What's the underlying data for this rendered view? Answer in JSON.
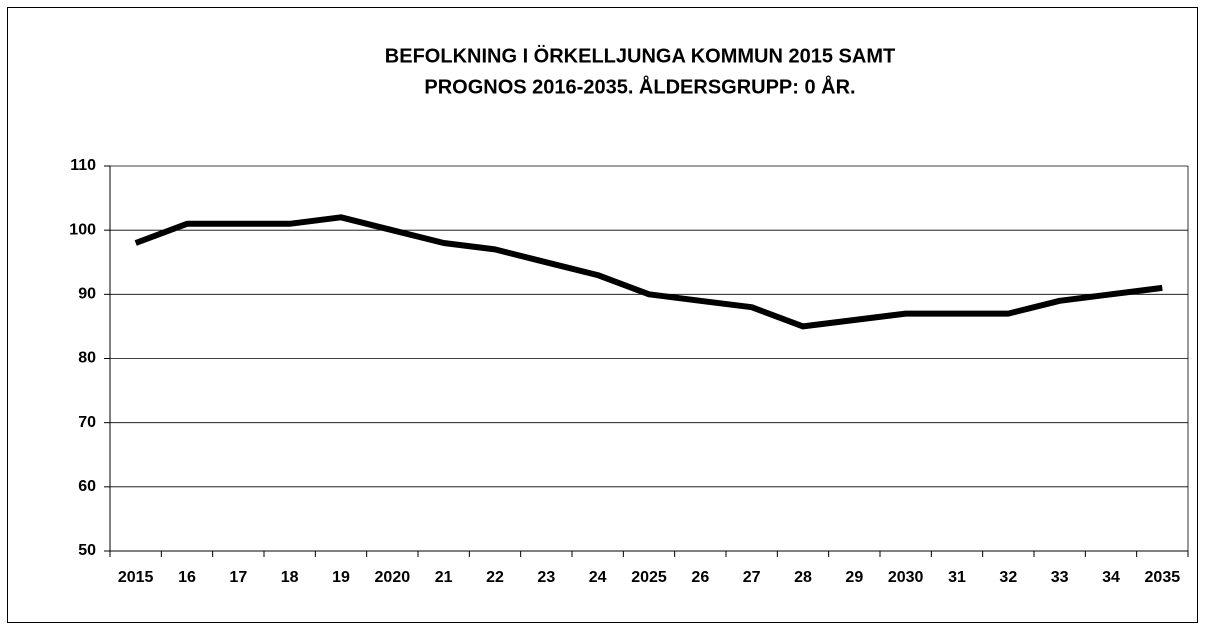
{
  "chart_data": {
    "type": "line",
    "title": [
      "BEFOLKNING I ÖRKELLJUNGA KOMMUN 2015 SAMT",
      "PROGNOS 2016-2035. ÅLDERSGRUPP: 0 ÅR."
    ],
    "categories": [
      "2015",
      "16",
      "17",
      "18",
      "19",
      "2020",
      "21",
      "22",
      "23",
      "24",
      "2025",
      "26",
      "27",
      "28",
      "29",
      "2030",
      "31",
      "32",
      "33",
      "34",
      "2035"
    ],
    "series": [
      {
        "name": "0 år",
        "color": "#000000",
        "values": [
          98,
          101,
          101,
          101,
          102,
          100,
          98,
          97,
          95,
          93,
          90,
          89,
          88,
          85,
          86,
          87,
          87,
          87,
          89,
          90,
          91
        ]
      }
    ],
    "ylim": [
      50,
      110
    ],
    "yticks": [
      50,
      60,
      70,
      80,
      90,
      100,
      110
    ],
    "grid": true
  }
}
